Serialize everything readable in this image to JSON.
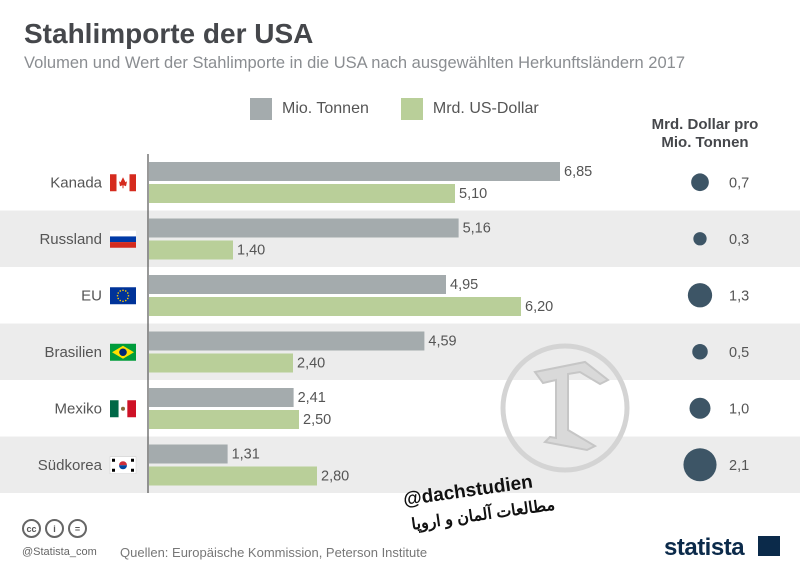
{
  "title": "Stahlimporte der USA",
  "subtitle": "Volumen und Wert der Stahlimporte in die USA nach ausgewählten Herkunftsländern 2017",
  "ratio_header_line1": "Mrd. Dollar pro",
  "ratio_header_line2": "Mio. Tonnen",
  "source": "Quellen: Europäische Kommission, Peterson Institute",
  "handle": "@Statista_com",
  "brand": "statista",
  "cc_icons": [
    "cc",
    "i",
    "="
  ],
  "watermark": {
    "line1": "@dachstudien",
    "line2": "مطالعات آلمان و اروپا"
  },
  "colors": {
    "gray": "#a4abad",
    "green": "#b9cf99",
    "stripe": "#ececec",
    "dot": "#3d5566"
  },
  "chart_data": {
    "type": "bar",
    "orientation": "horizontal",
    "categories": [
      "Kanada",
      "Russland",
      "EU",
      "Brasilien",
      "Mexiko",
      "Südkorea"
    ],
    "series": [
      {
        "name": "Mio. Tonnen",
        "values": [
          6.85,
          5.16,
          4.95,
          4.59,
          2.41,
          1.31
        ],
        "labels": [
          "6,85",
          "5,16",
          "4,95",
          "4,59",
          "2,41",
          "1,31"
        ],
        "color": "#a4abad"
      },
      {
        "name": "Mrd. US-Dollar",
        "values": [
          5.1,
          1.4,
          6.2,
          2.4,
          2.5,
          2.8
        ],
        "labels": [
          "5,10",
          "1,40",
          "6,20",
          "2,40",
          "2,50",
          "2,80"
        ],
        "color": "#b9cf99"
      }
    ],
    "ratio": {
      "name": "Mrd. Dollar pro Mio. Tonnen",
      "values": [
        0.7,
        0.3,
        1.3,
        0.5,
        1.0,
        2.1
      ],
      "labels": [
        "0,7",
        "0,3",
        "1,3",
        "0,5",
        "1,0",
        "2,1"
      ]
    },
    "flags": [
      "canada-flag",
      "russia-flag",
      "eu-flag",
      "brazil-flag",
      "mexico-flag",
      "south-korea-flag"
    ],
    "xlim": [
      0,
      7.2
    ],
    "grid": false,
    "legend": "top-center"
  }
}
